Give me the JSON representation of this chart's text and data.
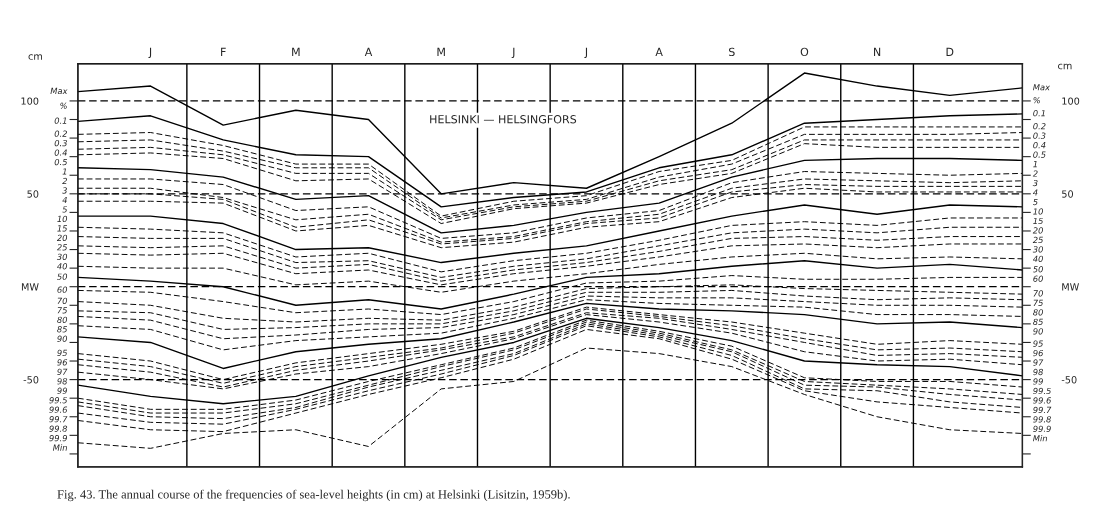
{
  "chart_data": {
    "type": "line",
    "title": "HELSINKI — HELSINGFORS",
    "ylabel": "cm",
    "y2label": "cm",
    "legend_title": "%",
    "annotations": [
      "Fig. 43. The annual course of the frequencies of sea-level heights (in cm) at Helsinki (Lisitzin, 1959b)."
    ],
    "categories": [
      null,
      "J",
      "F",
      "M",
      "A",
      "M",
      "J",
      "J",
      "A",
      "S",
      "O",
      "N",
      "D",
      null
    ],
    "ylim": [
      -97,
      120
    ],
    "yticks": [
      100,
      {
        "value": 90,
        "label": null
      },
      {
        "value": 80,
        "label": null
      },
      {
        "value": 70,
        "label": null
      },
      {
        "value": 60,
        "label": null
      },
      50,
      {
        "value": 40,
        "label": null
      },
      {
        "value": 30,
        "label": null
      },
      {
        "value": 20,
        "label": null
      },
      {
        "value": 10,
        "label": null
      },
      {
        "value": 0,
        "label": "MW"
      },
      {
        "value": -10,
        "label": null
      },
      {
        "value": -20,
        "label": null
      },
      {
        "value": -30,
        "label": null
      },
      {
        "value": -40,
        "label": null
      },
      -50,
      {
        "value": -60,
        "label": null
      },
      {
        "value": -70,
        "label": null
      },
      {
        "value": -80,
        "label": null
      },
      {
        "value": -90,
        "label": null
      }
    ],
    "y2lim": [
      -97,
      120
    ],
    "y2ticks": [
      100,
      {
        "value": 90,
        "label": null
      },
      {
        "value": 80,
        "label": null
      },
      {
        "value": 70,
        "label": null
      },
      {
        "value": 60,
        "label": null
      },
      50,
      {
        "value": 40,
        "label": null
      },
      {
        "value": 30,
        "label": null
      },
      {
        "value": 20,
        "label": null
      },
      {
        "value": 10,
        "label": null
      },
      {
        "value": 0,
        "label": "MW"
      },
      {
        "value": -10,
        "label": null
      },
      {
        "value": -20,
        "label": null
      },
      {
        "value": -30,
        "label": null
      },
      {
        "value": -40,
        "label": null
      },
      -50,
      {
        "value": -60,
        "label": null
      },
      {
        "value": -70,
        "label": null
      },
      {
        "value": -80,
        "label": null
      },
      {
        "value": -90,
        "label": null
      }
    ],
    "grid": "x",
    "ref_lines": [
      {
        "axis": "y",
        "value": 100,
        "color": "#000000",
        "line_style": "dashed"
      },
      {
        "axis": "y",
        "value": 50,
        "color": "#000000",
        "line_style": "dashed"
      },
      {
        "axis": "y",
        "value": 0,
        "color": "#000000",
        "line_style": "dashed"
      },
      {
        "axis": "y",
        "value": -50,
        "color": "#000000",
        "line_style": "dashed"
      }
    ],
    "series": [
      {
        "name": "Max",
        "color": "#000000",
        "line_style": "solid",
        "values": [
          105,
          108,
          87,
          95,
          90,
          50,
          56,
          53,
          70,
          88,
          115,
          108,
          103,
          107
        ]
      },
      {
        "name": "0.1",
        "color": "#000000",
        "line_style": "solid",
        "values": [
          89,
          92,
          79,
          71,
          70,
          43,
          48,
          51,
          64,
          71,
          88,
          90,
          92,
          93
        ]
      },
      {
        "name": "0.2",
        "color": "#000000",
        "line_style": "dashed",
        "values": [
          82,
          83,
          76,
          66,
          66,
          38,
          46,
          49,
          62,
          68,
          86,
          86,
          86,
          86
        ]
      },
      {
        "name": "0.3",
        "color": "#000000",
        "line_style": "dashed",
        "values": [
          78,
          79,
          73,
          64,
          64,
          37,
          44,
          47,
          59,
          66,
          82,
          82,
          82,
          83
        ]
      },
      {
        "name": "0.4",
        "color": "#000000",
        "line_style": "dashed",
        "values": [
          74,
          75,
          71,
          61,
          61,
          36,
          43,
          46,
          57,
          63,
          79,
          79,
          79,
          79
        ]
      },
      {
        "name": "0.5",
        "color": "#000000",
        "line_style": "dashed",
        "values": [
          71,
          72,
          69,
          57,
          58,
          34,
          42,
          45,
          55,
          61,
          77,
          75,
          75,
          75
        ]
      },
      {
        "name": "1",
        "color": "#000000",
        "line_style": "solid",
        "values": [
          64,
          63,
          59,
          47,
          49,
          29,
          33,
          40,
          45,
          59,
          68,
          69,
          69,
          68
        ]
      },
      {
        "name": "2",
        "color": "#000000",
        "line_style": "dashed",
        "values": [
          58,
          58,
          55,
          41,
          43,
          26,
          29,
          37,
          41,
          56,
          62,
          61,
          60,
          61
        ]
      },
      {
        "name": "3",
        "color": "#000000",
        "line_style": "dashed",
        "values": [
          53,
          53,
          48,
          36,
          39,
          24,
          27,
          35,
          39,
          53,
          58,
          57,
          56,
          57
        ]
      },
      {
        "name": "4",
        "color": "#000000",
        "line_style": "dashed",
        "values": [
          50,
          50,
          47,
          32,
          36,
          23,
          26,
          34,
          37,
          51,
          55,
          54,
          54,
          54
        ]
      },
      {
        "name": "5",
        "color": "#000000",
        "line_style": "dashed",
        "values": [
          46,
          46,
          45,
          30,
          33,
          21,
          24,
          32,
          35,
          48,
          53,
          51,
          51,
          51
        ]
      },
      {
        "name": "10",
        "color": "#000000",
        "line_style": "solid",
        "values": [
          38,
          38,
          34,
          20,
          21,
          13,
          18,
          22,
          30,
          38,
          44,
          39,
          44,
          43
        ]
      },
      {
        "name": "15",
        "color": "#000000",
        "line_style": "dashed",
        "values": [
          32,
          31,
          29,
          16,
          18,
          8,
          14,
          18,
          25,
          33,
          35,
          33,
          37,
          37
        ]
      },
      {
        "name": "20",
        "color": "#000000",
        "line_style": "dashed",
        "values": [
          27,
          26,
          26,
          13,
          14,
          5,
          11,
          15,
          22,
          29,
          31,
          29,
          32,
          32
        ]
      },
      {
        "name": "25",
        "color": "#000000",
        "line_style": "dashed",
        "values": [
          22,
          21,
          22,
          10,
          12,
          3,
          9,
          13,
          19,
          26,
          27,
          25,
          27,
          27
        ]
      },
      {
        "name": "30",
        "color": "#000000",
        "line_style": "dashed",
        "values": [
          18,
          17,
          18,
          7,
          9,
          1,
          7,
          11,
          16,
          22,
          23,
          21,
          23,
          23
        ]
      },
      {
        "name": "40",
        "color": "#000000",
        "line_style": "dashed",
        "values": [
          11,
          10,
          10,
          1,
          3,
          -3,
          3,
          7,
          12,
          16,
          18,
          15,
          16,
          15
        ]
      },
      {
        "name": "50",
        "color": "#000000",
        "line_style": "solid",
        "values": [
          5,
          3,
          0,
          -10,
          -7,
          -12,
          -4,
          5,
          7,
          11,
          14,
          10,
          12,
          9
        ]
      },
      {
        "name": "60",
        "color": "#000000",
        "line_style": "dashed",
        "values": [
          -2,
          -3,
          -8,
          -14,
          -12,
          -15,
          -8,
          2,
          3,
          6,
          4,
          4,
          5,
          5
        ]
      },
      {
        "name": "70",
        "color": "#000000",
        "line_style": "dashed",
        "values": [
          -8,
          -10,
          -17,
          -19,
          -17,
          -18,
          -11,
          -1,
          0,
          1,
          -1,
          -2,
          -3,
          -4
        ]
      },
      {
        "name": "75",
        "color": "#000000",
        "line_style": "dashed",
        "values": [
          -13,
          -14,
          -23,
          -22,
          -20,
          -20,
          -13,
          -3,
          -3,
          -2,
          -5,
          -7,
          -6,
          -7
        ]
      },
      {
        "name": "80",
        "color": "#000000",
        "line_style": "dashed",
        "values": [
          -16,
          -18,
          -28,
          -26,
          -23,
          -22,
          -15,
          -5,
          -6,
          -6,
          -8,
          -10,
          -10,
          -11
        ]
      },
      {
        "name": "85",
        "color": "#000000",
        "line_style": "dashed",
        "values": [
          -21,
          -23,
          -34,
          -29,
          -27,
          -25,
          -17,
          -7,
          -9,
          -10,
          -11,
          -15,
          -15,
          -16
        ]
      },
      {
        "name": "90",
        "color": "#000000",
        "line_style": "solid",
        "values": [
          -27,
          -30,
          -44,
          -35,
          -31,
          -28,
          -19,
          -9,
          -12,
          -13,
          -15,
          -20,
          -19,
          -22
        ]
      },
      {
        "name": "95",
        "color": "#000000",
        "line_style": "dashed",
        "values": [
          -36,
          -40,
          -50,
          -41,
          -36,
          -31,
          -24,
          -11,
          -15,
          -19,
          -25,
          -31,
          -29,
          -31
        ]
      },
      {
        "name": "96",
        "color": "#000000",
        "line_style": "dashed",
        "values": [
          -39,
          -43,
          -52,
          -43,
          -38,
          -33,
          -25,
          -12,
          -16,
          -21,
          -28,
          -34,
          -33,
          -35
        ]
      },
      {
        "name": "97",
        "color": "#000000",
        "line_style": "dashed",
        "values": [
          -42,
          -46,
          -54,
          -45,
          -40,
          -34,
          -27,
          -14,
          -17,
          -23,
          -30,
          -37,
          -36,
          -38
        ]
      },
      {
        "name": "98",
        "color": "#000000",
        "line_style": "dashed",
        "values": [
          -46,
          -50,
          -55,
          -47,
          -43,
          -36,
          -28,
          -15,
          -19,
          -25,
          -35,
          -40,
          -39,
          -42
        ]
      },
      {
        "name": "99",
        "color": "#000000",
        "line_style": "solid",
        "values": [
          -53,
          -59,
          -63,
          -59,
          -48,
          -38,
          -30,
          -17,
          -22,
          -29,
          -40,
          -42,
          -43,
          -48
        ]
      },
      {
        "name": "99.5",
        "color": "#000000",
        "line_style": "dashed",
        "values": [
          -60,
          -66,
          -66,
          -61,
          -51,
          -42,
          -33,
          -18,
          -24,
          -32,
          -49,
          -51,
          -51,
          -54
        ]
      },
      {
        "name": "99.6",
        "color": "#000000",
        "line_style": "dashed",
        "values": [
          -62,
          -68,
          -68,
          -63,
          -53,
          -43,
          -34,
          -19,
          -25,
          -34,
          -51,
          -53,
          -55,
          -58
        ]
      },
      {
        "name": "99.7",
        "color": "#000000",
        "line_style": "dashed",
        "values": [
          -64,
          -70,
          -71,
          -65,
          -54,
          -45,
          -36,
          -20,
          -26,
          -35,
          -53,
          -54,
          -58,
          -61
        ]
      },
      {
        "name": "99.8",
        "color": "#000000",
        "line_style": "dashed",
        "values": [
          -68,
          -73,
          -74,
          -66,
          -56,
          -47,
          -37,
          -21,
          -27,
          -37,
          -55,
          -56,
          -62,
          -65
        ]
      },
      {
        "name": "99.9",
        "color": "#000000",
        "line_style": "dashed",
        "values": [
          -72,
          -77,
          -78,
          -68,
          -58,
          -49,
          -39,
          -23,
          -28,
          -39,
          -56,
          -62,
          -65,
          -68
        ]
      },
      {
        "name": "Min",
        "color": "#000000",
        "line_style": "dashed",
        "values": [
          -84,
          -87,
          -79,
          -77,
          -86,
          -55,
          -51,
          -33,
          -36,
          -43,
          -58,
          -70,
          -77,
          -79
        ]
      }
    ]
  }
}
